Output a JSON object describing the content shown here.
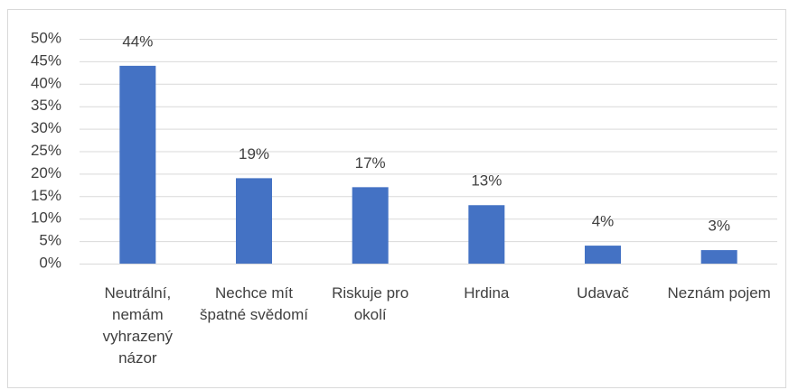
{
  "chart_data": {
    "type": "bar",
    "categories": [
      "Neutrální, nemám vyhrazený názor",
      "Nechce mít špatné svědomí",
      "Riskuje pro okolí",
      "Hrdina",
      "Udavač",
      "Neznám pojem"
    ],
    "values": [
      44,
      19,
      17,
      13,
      4,
      3
    ],
    "value_labels": [
      "44%",
      "19%",
      "17%",
      "13%",
      "4%",
      "3%"
    ],
    "color": "#4472c4",
    "ylim": [
      0,
      50
    ],
    "yticks": [
      {
        "value": 0,
        "label": "0%"
      },
      {
        "value": 5,
        "label": "5%"
      },
      {
        "value": 10,
        "label": "10%"
      },
      {
        "value": 15,
        "label": "15%"
      },
      {
        "value": 20,
        "label": "20%"
      },
      {
        "value": 25,
        "label": "25%"
      },
      {
        "value": 30,
        "label": "30%"
      },
      {
        "value": 35,
        "label": "35%"
      },
      {
        "value": 40,
        "label": "40%"
      },
      {
        "value": 45,
        "label": "45%"
      },
      {
        "value": 50,
        "label": "50%"
      }
    ],
    "grid": true
  }
}
